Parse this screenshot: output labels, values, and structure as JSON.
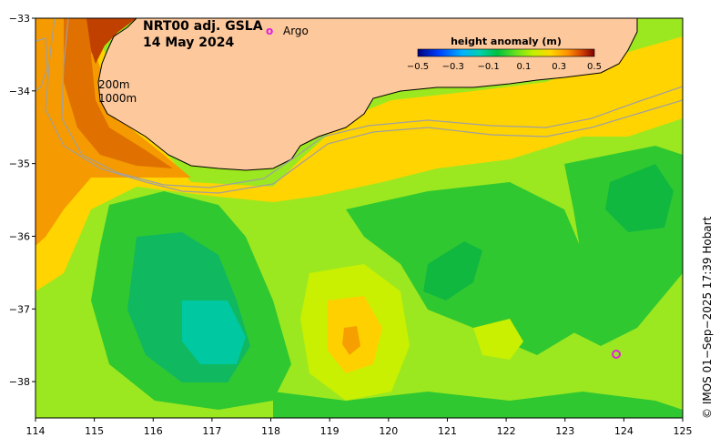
{
  "title": {
    "product": "NRT00 adj. GSLA",
    "date": "14 May 2024"
  },
  "legend": {
    "argo_marker": "o",
    "argo_label": "Argo",
    "argo_color": "#e020e0"
  },
  "isobaths": [
    "200m",
    "1000m"
  ],
  "colorbar": {
    "title": "height anomaly (m)",
    "ticks": [
      "−0.5",
      "−0.3",
      "−0.1",
      "0.1",
      "0.3",
      "0.5"
    ],
    "range": [
      -0.5,
      0.5
    ],
    "colors": [
      "#000080",
      "#0000d0",
      "#0060ff",
      "#00c0ff",
      "#00e0c0",
      "#00c060",
      "#20d020",
      "#80e020",
      "#d0f000",
      "#ffe000",
      "#ffb000",
      "#f07000",
      "#c03000",
      "#800000"
    ]
  },
  "axes": {
    "lon_ticks": [
      "114",
      "115",
      "116",
      "117",
      "118",
      "119",
      "120",
      "121",
      "122",
      "123",
      "124",
      "125"
    ],
    "lat_ticks": [
      "−33",
      "−34",
      "−35",
      "−36",
      "−37",
      "−38"
    ],
    "lon_range": [
      114,
      125
    ],
    "lat_range": [
      -38.5,
      -33
    ]
  },
  "credit": "©  IMOS 01−Sep−2025 17:39 Hobart",
  "colors": {
    "land": "#fdc89c",
    "coast": "#000000",
    "isobath": "#a0a0a0"
  }
}
